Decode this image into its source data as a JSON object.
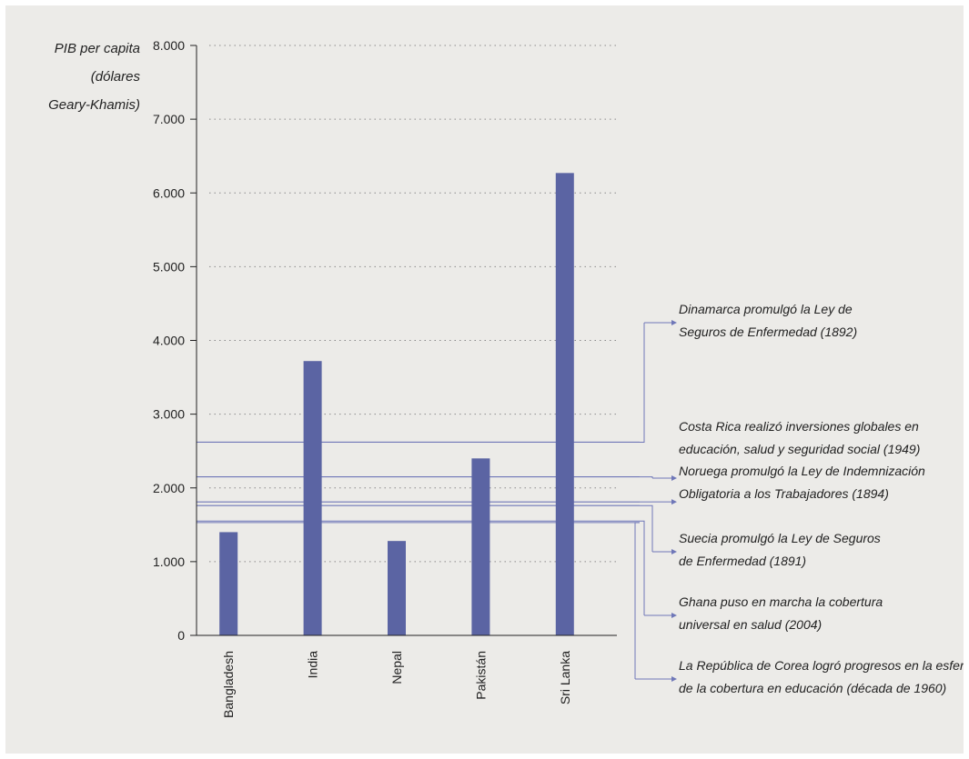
{
  "chart_data": {
    "type": "bar",
    "ylabel_lines": [
      "PIB per capita",
      "(dólares",
      "Geary-Khamis)"
    ],
    "ylim": [
      0,
      8000
    ],
    "yticks": [
      {
        "value": 0,
        "label": "0"
      },
      {
        "value": 1000,
        "label": "1.000"
      },
      {
        "value": 2000,
        "label": "2.000"
      },
      {
        "value": 3000,
        "label": "3.000"
      },
      {
        "value": 4000,
        "label": "4.000"
      },
      {
        "value": 5000,
        "label": "5.000"
      },
      {
        "value": 6000,
        "label": "6.000"
      },
      {
        "value": 7000,
        "label": "7.000"
      },
      {
        "value": 8000,
        "label": "8.000"
      }
    ],
    "grid": "dotted horizontal",
    "categories": [
      "Bangladesh",
      "India",
      "Nepal",
      "Pakistán",
      "Sri Lanka"
    ],
    "values": [
      1400,
      3720,
      1280,
      2400,
      6270
    ],
    "bar_color": "#5b64a3",
    "reference_line_color": "#6f77b8",
    "annotations": [
      {
        "value": 2620,
        "lines": [
          "Dinamarca promulgó la Ley de",
          "Seguros de Enfermedad (1892)"
        ]
      },
      {
        "value": 2150,
        "lines": [
          "Costa Rica realizó inversiones globales en",
          "educación, salud y seguridad social (1949)"
        ]
      },
      {
        "value": 1810,
        "lines": [
          "Noruega promulgó la Ley de Indemnización",
          "Obligatoria a los Trabajadores (1894)"
        ]
      },
      {
        "value": 1760,
        "lines": [
          "Suecia promulgó la Ley de Seguros",
          "de Enfermedad (1891)"
        ]
      },
      {
        "value": 1550,
        "lines": [
          "Ghana puso en marcha la cobertura",
          "universal en salud (2004)"
        ]
      },
      {
        "value": 1530,
        "lines": [
          "La República de Corea logró progresos en la esfera",
          "de la cobertura en educación (década de 1960)"
        ]
      }
    ]
  }
}
